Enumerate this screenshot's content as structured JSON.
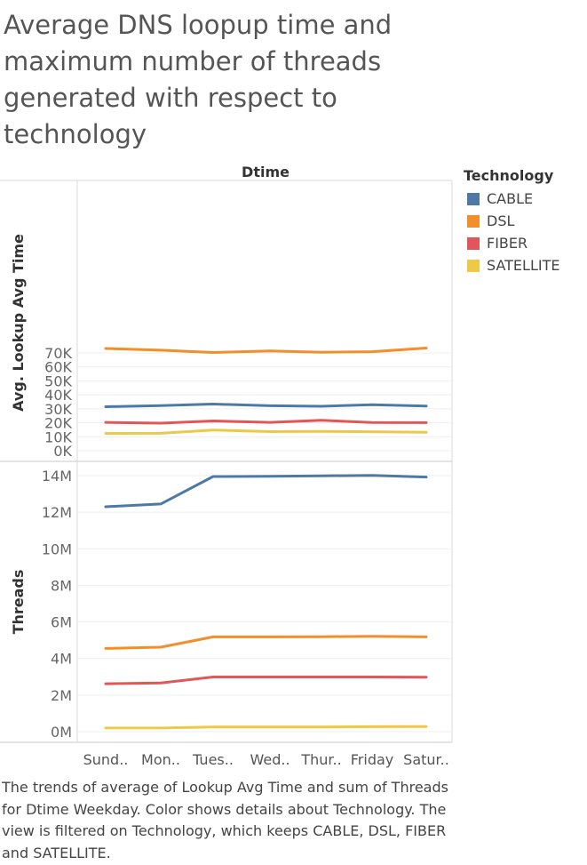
{
  "title": "Average DNS loopup time and maximum number of threads generated with respect to technology",
  "caption": "The trends of average of Lookup Avg Time and sum of Threads for Dtime Weekday.  Color shows details about Technology. The view is filtered on Technology, which keeps CABLE, DSL, FIBER and SATELLITE.",
  "legend": {
    "title": "Technology",
    "items": [
      {
        "label": "CABLE",
        "color": "#4e79a7"
      },
      {
        "label": "DSL",
        "color": "#f28e2b"
      },
      {
        "label": "FIBER",
        "color": "#e15759"
      },
      {
        "label": "SATELLITE",
        "color": "#edc948"
      }
    ]
  },
  "chart_data": [
    {
      "type": "line",
      "title": "Dtime",
      "xlabel": "",
      "ylabel": "Avg. Lookup Avg Time",
      "ylim": [
        0,
        74000
      ],
      "yticks": [
        "0K",
        "10K",
        "20K",
        "30K",
        "40K",
        "50K",
        "60K",
        "70K"
      ],
      "ytick_values": [
        0,
        10000,
        20000,
        30000,
        40000,
        50000,
        60000,
        70000
      ],
      "categories": [
        "Sund..",
        "Mon..",
        "Tues..",
        "Wed..",
        "Thur..",
        "Friday",
        "Satur.."
      ],
      "series": [
        {
          "name": "CABLE",
          "color": "#4e79a7",
          "values": [
            31500,
            32300,
            33400,
            32200,
            31800,
            32900,
            32000
          ]
        },
        {
          "name": "DSL",
          "color": "#f28e2b",
          "values": [
            73200,
            72000,
            70300,
            71400,
            70500,
            70900,
            73500
          ]
        },
        {
          "name": "FIBER",
          "color": "#e15759",
          "values": [
            20300,
            19700,
            21300,
            20300,
            21800,
            20200,
            20100
          ]
        },
        {
          "name": "SATELLITE",
          "color": "#edc948",
          "values": [
            12400,
            12500,
            14800,
            13700,
            13900,
            13600,
            13200
          ]
        }
      ]
    },
    {
      "type": "line",
      "title": "",
      "xlabel": "",
      "ylabel": "Threads",
      "ylim": [
        -150000,
        14600000
      ],
      "yticks": [
        "0M",
        "2M",
        "4M",
        "6M",
        "8M",
        "10M",
        "12M",
        "14M"
      ],
      "ytick_values": [
        0,
        2000000,
        4000000,
        6000000,
        8000000,
        10000000,
        12000000,
        14000000
      ],
      "categories": [
        "Sund..",
        "Mon..",
        "Tues..",
        "Wed..",
        "Thur..",
        "Friday",
        "Satur.."
      ],
      "series": [
        {
          "name": "CABLE",
          "color": "#4e79a7",
          "values": [
            12300000,
            12450000,
            13950000,
            13960000,
            13990000,
            14010000,
            13920000
          ]
        },
        {
          "name": "DSL",
          "color": "#f28e2b",
          "values": [
            4550000,
            4620000,
            5180000,
            5180000,
            5190000,
            5210000,
            5180000
          ]
        },
        {
          "name": "FIBER",
          "color": "#e15759",
          "values": [
            2620000,
            2660000,
            2990000,
            2990000,
            2990000,
            2990000,
            2980000
          ]
        },
        {
          "name": "SATELLITE",
          "color": "#edc948",
          "values": [
            200000,
            200000,
            260000,
            260000,
            260000,
            270000,
            280000
          ]
        }
      ]
    }
  ]
}
